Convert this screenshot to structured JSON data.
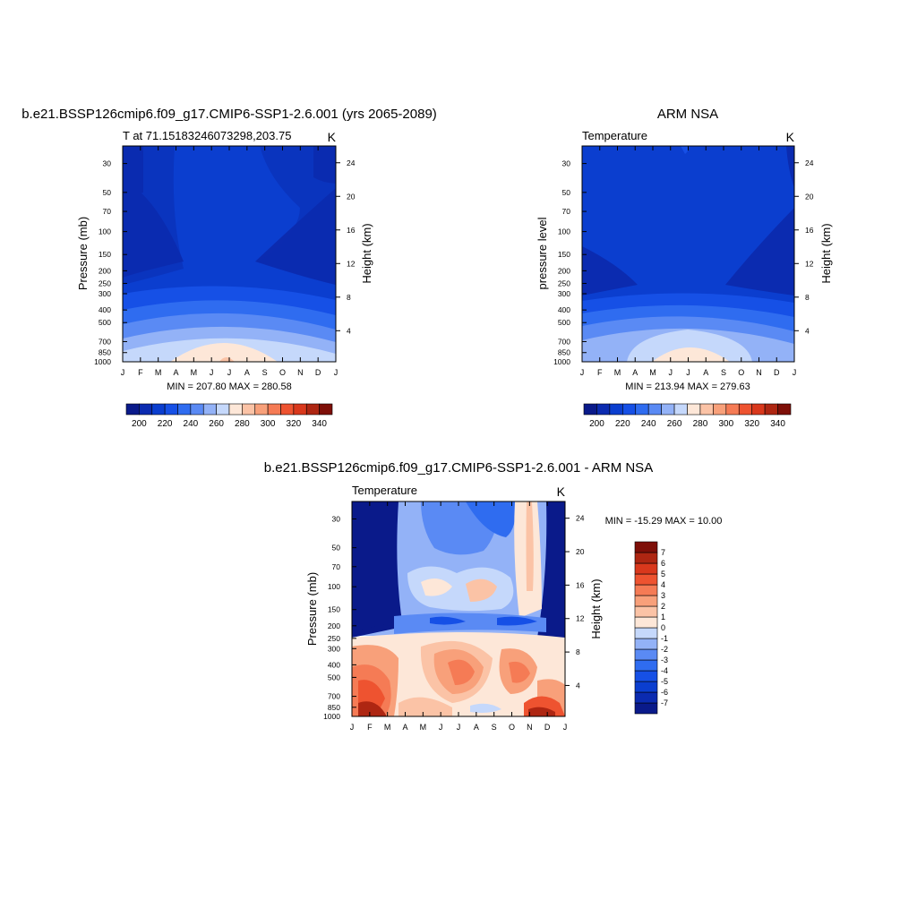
{
  "chart_data": [
    {
      "type": "heatmap",
      "title": "b.e21.BSSP126cmip6.f09_g17.CMIP6-SSP1-2.6.001 (yrs 2065-2089)",
      "left_string": "T at 71.15183246073298,203.75",
      "right_string": "K",
      "ylabel": "Pressure (mb)",
      "ylabel_right": "Height (km)",
      "x_ticks": [
        "J",
        "F",
        "M",
        "A",
        "M",
        "J",
        "J",
        "A",
        "S",
        "O",
        "N",
        "D",
        "J"
      ],
      "y_ticks": [
        "30",
        "50",
        "70",
        "100",
        "150",
        "200",
        "250",
        "300",
        "400",
        "500",
        "700",
        "850",
        "1000"
      ],
      "y_ticks_right": [
        "24",
        "20",
        "16",
        "12",
        "8",
        "4"
      ],
      "minmax_label": "MIN = 207.80 MAX = 280.58",
      "colorbar": {
        "orientation": "horizontal",
        "labels": [
          "200",
          "220",
          "240",
          "260",
          "280",
          "300",
          "320",
          "340"
        ],
        "levels": [
          190,
          200,
          210,
          220,
          230,
          240,
          250,
          260,
          270,
          280,
          290,
          300,
          310,
          320,
          330,
          340,
          350
        ],
        "colors": [
          "#0a1a8a",
          "#0b2bb0",
          "#0b3ecf",
          "#1650e6",
          "#2f6cf0",
          "#5a8af4",
          "#93b2f7",
          "#c5d8fb",
          "#fde7d8",
          "#fbc3a6",
          "#f8a07a",
          "#f57b55",
          "#ee5330",
          "#d9381c",
          "#ae2612",
          "#7e0f08"
        ]
      },
      "field_range": [
        207.8,
        280.58
      ]
    },
    {
      "type": "heatmap",
      "title": "ARM NSA",
      "left_string": "Temperature",
      "right_string": "K",
      "ylabel": "pressure level",
      "ylabel_right": "Height (km)",
      "x_ticks": [
        "J",
        "F",
        "M",
        "A",
        "M",
        "J",
        "J",
        "A",
        "S",
        "O",
        "N",
        "D",
        "J"
      ],
      "y_ticks": [
        "30",
        "50",
        "70",
        "100",
        "150",
        "200",
        "250",
        "300",
        "400",
        "500",
        "700",
        "850",
        "1000"
      ],
      "y_ticks_right": [
        "24",
        "20",
        "16",
        "12",
        "8",
        "4"
      ],
      "minmax_label": "MIN = 213.94 MAX = 279.63",
      "colorbar": {
        "orientation": "horizontal",
        "labels": [
          "200",
          "220",
          "240",
          "260",
          "280",
          "300",
          "320",
          "340"
        ],
        "levels": [
          190,
          200,
          210,
          220,
          230,
          240,
          250,
          260,
          270,
          280,
          290,
          300,
          310,
          320,
          330,
          340,
          350
        ],
        "colors": [
          "#0a1a8a",
          "#0b2bb0",
          "#0b3ecf",
          "#1650e6",
          "#2f6cf0",
          "#5a8af4",
          "#93b2f7",
          "#c5d8fb",
          "#fde7d8",
          "#fbc3a6",
          "#f8a07a",
          "#f57b55",
          "#ee5330",
          "#d9381c",
          "#ae2612",
          "#7e0f08"
        ]
      },
      "field_range": [
        213.94,
        279.63
      ]
    },
    {
      "type": "heatmap",
      "title": "b.e21.BSSP126cmip6.f09_g17.CMIP6-SSP1-2.6.001 - ARM NSA",
      "left_string": "Temperature",
      "right_string": "K",
      "ylabel": "Pressure (mb)",
      "ylabel_right": "Height (km)",
      "x_ticks": [
        "J",
        "F",
        "M",
        "A",
        "M",
        "J",
        "J",
        "A",
        "S",
        "O",
        "N",
        "D",
        "J"
      ],
      "y_ticks": [
        "30",
        "50",
        "70",
        "100",
        "150",
        "200",
        "250",
        "300",
        "400",
        "500",
        "700",
        "850",
        "1000"
      ],
      "y_ticks_right": [
        "24",
        "20",
        "16",
        "12",
        "8",
        "4"
      ],
      "minmax_label": "MIN = -15.29 MAX =  10.00",
      "colorbar": {
        "orientation": "vertical",
        "labels": [
          "7",
          "6",
          "5",
          "4",
          "3",
          "2",
          "1",
          "0",
          "-1",
          "-2",
          "-3",
          "-4",
          "-5",
          "-6",
          "-7"
        ],
        "levels": [
          -8,
          -7,
          -6,
          -5,
          -4,
          -3,
          -2,
          -1,
          0,
          1,
          2,
          3,
          4,
          5,
          6,
          7,
          8
        ],
        "colors": [
          "#0a1a8a",
          "#0b2bb0",
          "#0b3ecf",
          "#1650e6",
          "#2f6cf0",
          "#5a8af4",
          "#93b2f7",
          "#c5d8fb",
          "#fde7d8",
          "#fbc3a6",
          "#f8a07a",
          "#f57b55",
          "#ee5330",
          "#d9381c",
          "#ae2612",
          "#7e0f08"
        ]
      },
      "field_range": [
        -15.29,
        10.0
      ]
    }
  ]
}
